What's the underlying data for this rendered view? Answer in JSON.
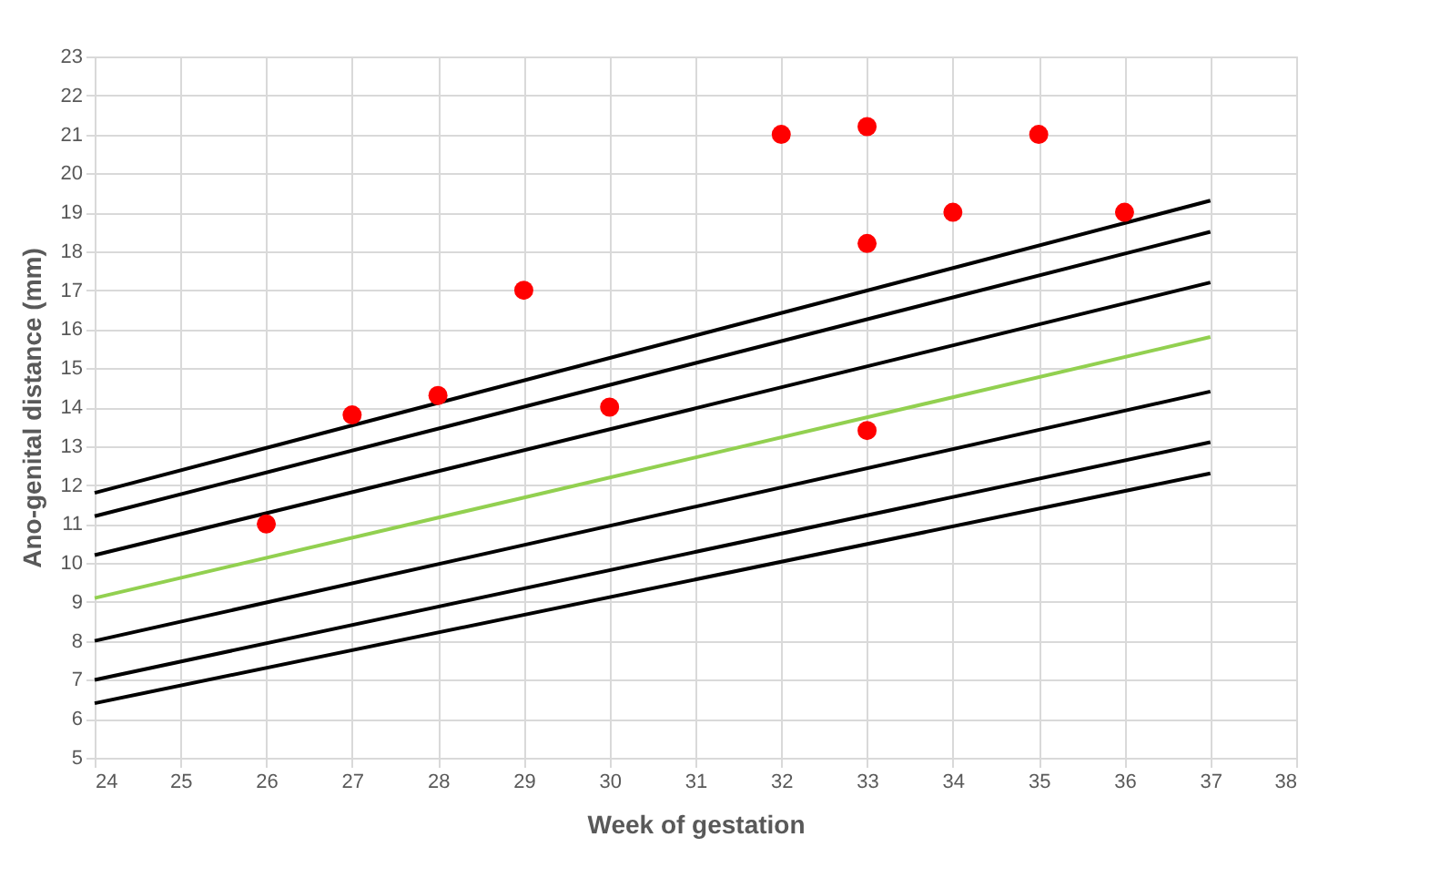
{
  "chart_data": {
    "type": "line",
    "xlabel": "Week of gestation",
    "ylabel": "Ano-genital distance (mm)",
    "xlim": [
      24,
      38
    ],
    "xticks": [
      24,
      25,
      26,
      27,
      28,
      29,
      30,
      31,
      32,
      33,
      34,
      35,
      36,
      37,
      38
    ],
    "ylim": [
      5,
      23
    ],
    "yticks": [
      5,
      6,
      7,
      8,
      9,
      10,
      11,
      12,
      13,
      14,
      15,
      16,
      17,
      18,
      19,
      20,
      21,
      22,
      23
    ],
    "grid": true,
    "marker": "none",
    "line_style": "solid",
    "series": [
      {
        "color": "#000000",
        "x": [
          24,
          37
        ],
        "values": [
          11.8,
          19.3
        ]
      },
      {
        "color": "#000000",
        "x": [
          24,
          37
        ],
        "values": [
          11.2,
          18.5
        ]
      },
      {
        "color": "#000000",
        "x": [
          24,
          37
        ],
        "values": [
          10.2,
          17.2
        ]
      },
      {
        "color": "#92d050",
        "x": [
          24,
          37
        ],
        "values": [
          9.1,
          15.8
        ]
      },
      {
        "color": "#000000",
        "x": [
          24,
          37
        ],
        "values": [
          8.0,
          14.4
        ]
      },
      {
        "color": "#000000",
        "x": [
          24,
          37
        ],
        "values": [
          7.0,
          13.1
        ]
      },
      {
        "color": "#000000",
        "x": [
          24,
          37
        ],
        "values": [
          6.4,
          12.3
        ]
      },
      {
        "type": "scatter",
        "marker": "circle",
        "color": "#ff0000",
        "x": [
          26,
          27,
          28,
          29,
          30,
          32,
          33,
          33,
          33,
          34,
          35,
          36
        ],
        "values": [
          11,
          13.8,
          14.3,
          17,
          14,
          21,
          21.2,
          18.2,
          13.4,
          19,
          21,
          19
        ]
      }
    ]
  }
}
